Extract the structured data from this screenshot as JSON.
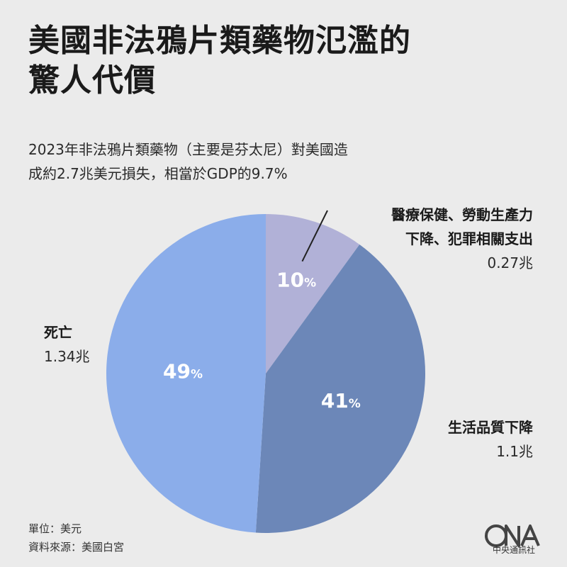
{
  "title_line1": "美國非法鴉片類藥物氾濫的",
  "title_line2": "驚人代價",
  "subtitle_line1": "2023年非法鴉片類藥物（主要是芬太尼）對美國造",
  "subtitle_line2": "成約2.7兆美元損失，相當於GDP的9.7%",
  "chart_data": {
    "type": "pie",
    "slices": [
      {
        "label_line1": "醫療保健、勞動生產力",
        "label_line2": "下降、犯罪相關支出",
        "value_text": "0.27兆",
        "value": 0.27,
        "percent": 10,
        "color": "#b1b1d7"
      },
      {
        "label_line1": "生活品質下降",
        "label_line2": "",
        "value_text": "1.1兆",
        "value": 1.1,
        "percent": 41,
        "color": "#6c87b8"
      },
      {
        "label_line1": "死亡",
        "label_line2": "",
        "value_text": "1.34兆",
        "value": 1.34,
        "percent": 49,
        "color": "#8badea"
      }
    ]
  },
  "footer": {
    "unit": "單位：美元",
    "source": "資料來源：美國白宮"
  },
  "logo": {
    "text": "中央通訊社",
    "icon": "cna-logo-icon"
  }
}
